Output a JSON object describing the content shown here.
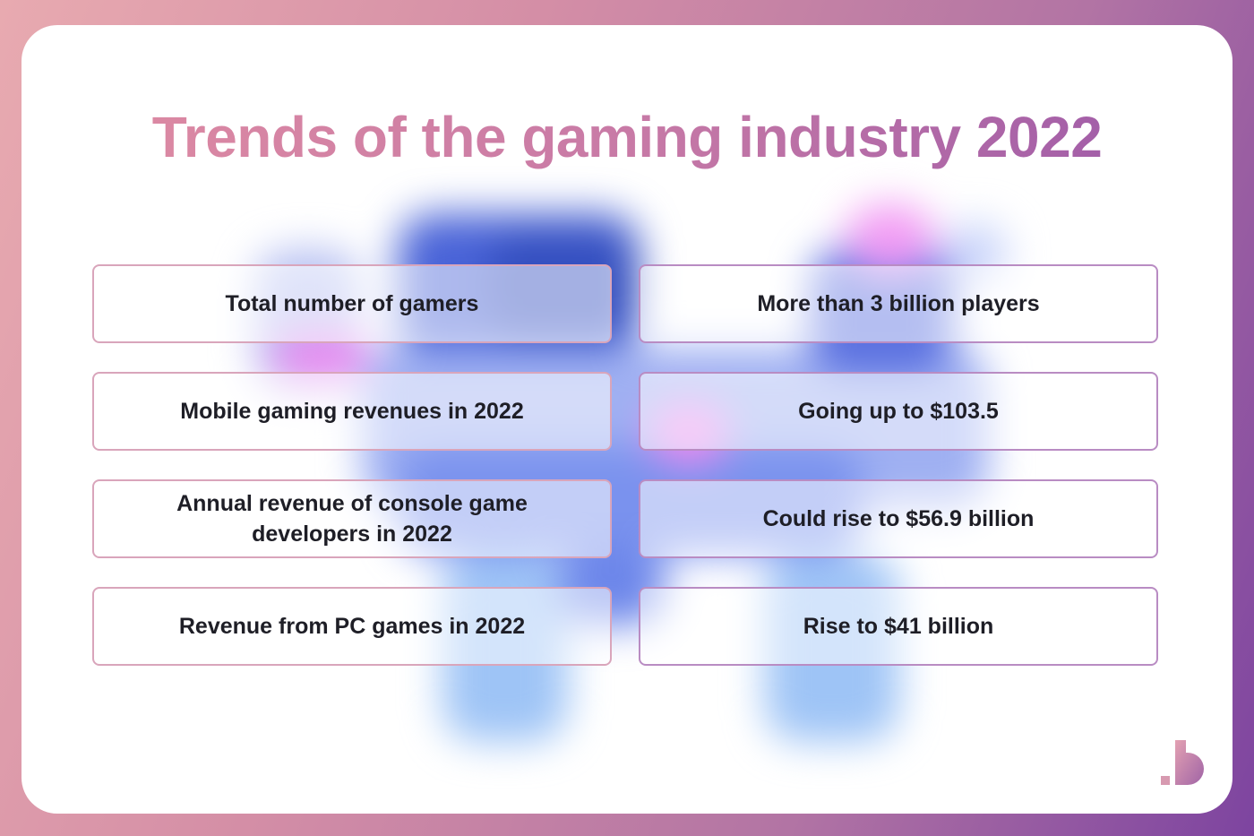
{
  "title": "Trends of the gaming industry 2022",
  "colors": {
    "accent_start": "#e08ca2",
    "accent_end": "#9a58a8",
    "text": "#1e1e26"
  },
  "rows": [
    {
      "label": "Total number of gamers",
      "value": "More than 3 billion players"
    },
    {
      "label": "Mobile gaming revenues in 2022",
      "value": "Going up to $103.5"
    },
    {
      "label": "Annual revenue of console game developers in 2022",
      "value": "Could rise to $56.9 billion"
    },
    {
      "label": "Revenue from PC games in 2022",
      "value": "Rise to $41 billion"
    }
  ],
  "logo_icon": "brand-b-logo-icon"
}
